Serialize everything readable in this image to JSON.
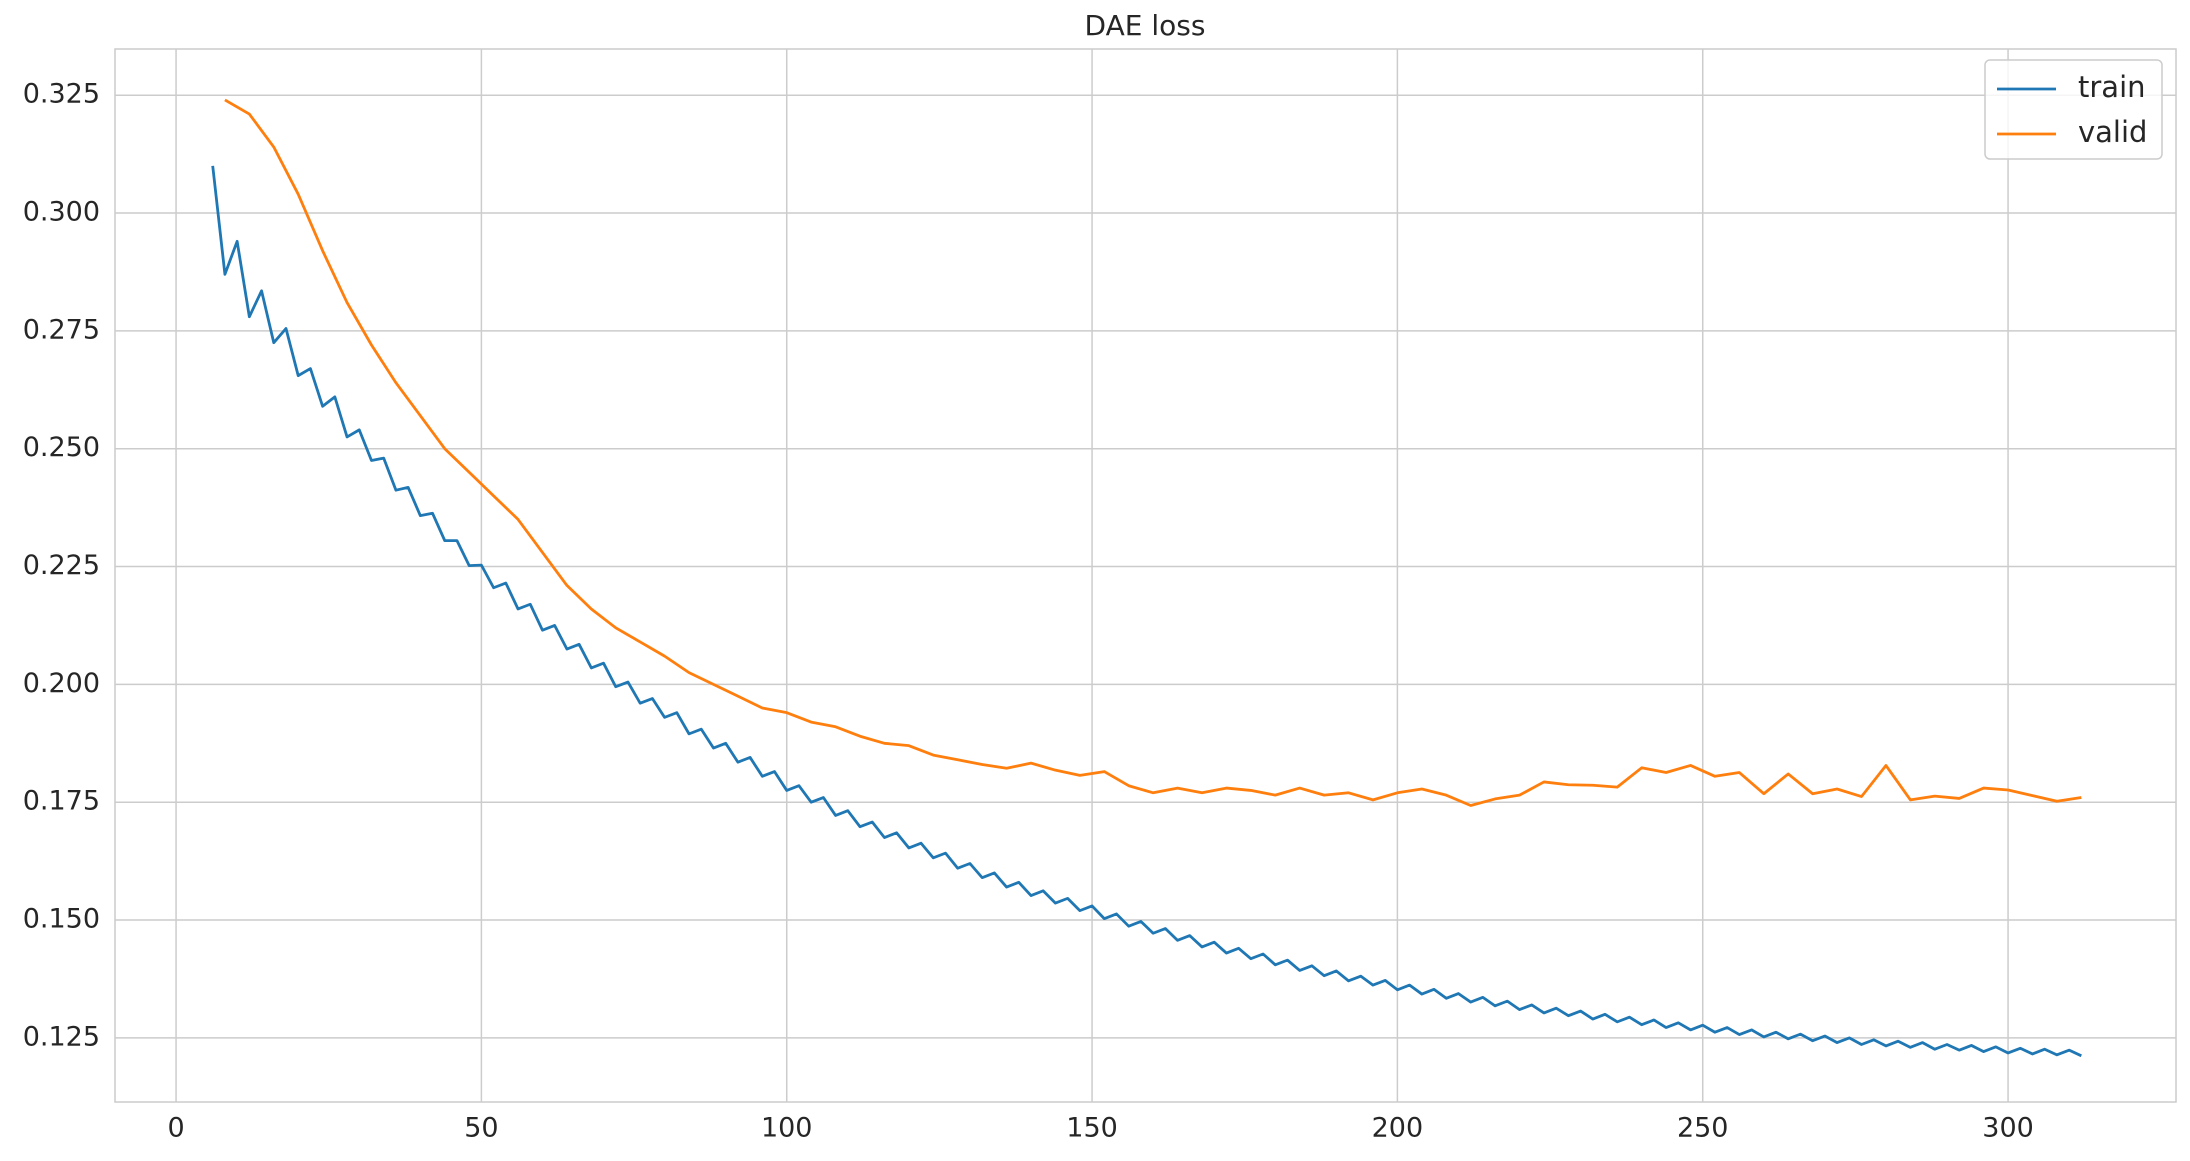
{
  "chart_data": {
    "type": "line",
    "title": "DAE loss",
    "xlim": [
      -10,
      327.5
    ],
    "ylim": [
      0.1114,
      0.3348
    ],
    "xticks": [
      0,
      50,
      100,
      150,
      200,
      250,
      300
    ],
    "yticks": [
      0.125,
      {
        "value": 0.15,
        "label": "0.150"
      },
      0.175,
      {
        "value": 0.2,
        "label": "0.200"
      },
      0.225,
      {
        "value": 0.25,
        "label": "0.250"
      },
      0.275,
      {
        "value": 0.3,
        "label": "0.300"
      },
      0.325
    ],
    "grid": true,
    "legend": "upper right",
    "series": [
      {
        "name": "train",
        "color": "#1f77b4",
        "x": [
          6,
          8,
          10,
          12,
          14,
          16,
          18,
          20,
          22,
          24,
          26,
          28,
          30,
          32,
          34,
          36,
          38,
          40,
          42,
          44,
          46,
          48,
          50,
          52,
          54,
          56,
          58,
          60,
          62,
          64,
          66,
          68,
          70,
          72,
          74,
          76,
          78,
          80,
          82,
          84,
          86,
          88,
          90,
          92,
          94,
          96,
          98,
          100,
          102,
          104,
          106,
          108,
          110,
          112,
          114,
          116,
          118,
          120,
          122,
          124,
          126,
          128,
          130,
          132,
          134,
          136,
          138,
          140,
          142,
          144,
          146,
          148,
          150,
          152,
          154,
          156,
          158,
          160,
          162,
          164,
          166,
          168,
          170,
          172,
          174,
          176,
          178,
          180,
          182,
          184,
          186,
          188,
          190,
          192,
          194,
          196,
          198,
          200,
          202,
          204,
          206,
          208,
          210,
          212,
          214,
          216,
          218,
          220,
          222,
          224,
          226,
          228,
          230,
          232,
          234,
          236,
          238,
          240,
          242,
          244,
          246,
          248,
          250,
          252,
          254,
          256,
          258,
          260,
          262,
          264,
          266,
          268,
          270,
          272,
          274,
          276,
          278,
          280,
          282,
          284,
          286,
          288,
          290,
          292,
          294,
          296,
          298,
          300,
          302,
          304,
          306,
          308,
          310,
          312
        ],
        "values": [
          0.31,
          0.287,
          0.294,
          0.278,
          0.2835,
          0.2725,
          0.2755,
          0.2655,
          0.267,
          0.259,
          0.261,
          0.2525,
          0.254,
          0.2475,
          0.248,
          0.2412,
          0.2418,
          0.2358,
          0.2363,
          0.2305,
          0.2305,
          0.2252,
          0.2253,
          0.2205,
          0.2215,
          0.216,
          0.217,
          0.2115,
          0.2125,
          0.2075,
          0.2085,
          0.2035,
          0.2045,
          0.1995,
          0.2005,
          0.196,
          0.197,
          0.193,
          0.194,
          0.1895,
          0.1905,
          0.1865,
          0.1875,
          0.1835,
          0.1845,
          0.1805,
          0.1815,
          0.1775,
          0.1785,
          0.175,
          0.176,
          0.1722,
          0.1732,
          0.1698,
          0.1708,
          0.1675,
          0.1685,
          0.1653,
          0.1663,
          0.1632,
          0.1642,
          0.161,
          0.162,
          0.159,
          0.16,
          0.157,
          0.158,
          0.1552,
          0.1562,
          0.1536,
          0.1546,
          0.152,
          0.153,
          0.1503,
          0.1513,
          0.1487,
          0.1497,
          0.1472,
          0.1482,
          0.1457,
          0.1467,
          0.1443,
          0.1453,
          0.143,
          0.144,
          0.1418,
          0.1428,
          0.1405,
          0.1415,
          0.1393,
          0.1403,
          0.1382,
          0.1392,
          0.1371,
          0.1381,
          0.1362,
          0.1372,
          0.1352,
          0.1362,
          0.1343,
          0.1353,
          0.1334,
          0.1344,
          0.1326,
          0.1336,
          0.1318,
          0.1328,
          0.131,
          0.132,
          0.1303,
          0.1313,
          0.1297,
          0.1307,
          0.129,
          0.13,
          0.1284,
          0.1294,
          0.1278,
          0.1288,
          0.1272,
          0.1282,
          0.1267,
          0.1277,
          0.1262,
          0.1272,
          0.1257,
          0.1267,
          0.1252,
          0.1262,
          0.1248,
          0.1258,
          0.1244,
          0.1254,
          0.124,
          0.125,
          0.1236,
          0.1246,
          0.1233,
          0.1243,
          0.123,
          0.124,
          0.1226,
          0.1236,
          0.1224,
          0.1234,
          0.1221,
          0.1231,
          0.1218,
          0.1228,
          0.1216,
          0.1226,
          0.1214,
          0.1224,
          0.1212
        ]
      },
      {
        "name": "valid",
        "color": "#ff7f0e",
        "x": [
          8,
          12,
          16,
          20,
          24,
          28,
          32,
          36,
          40,
          44,
          48,
          52,
          56,
          60,
          64,
          68,
          72,
          76,
          80,
          84,
          88,
          92,
          96,
          100,
          104,
          108,
          112,
          116,
          120,
          124,
          128,
          132,
          136,
          140,
          144,
          148,
          152,
          156,
          160,
          164,
          168,
          172,
          176,
          180,
          184,
          188,
          192,
          196,
          200,
          204,
          208,
          212,
          216,
          220,
          224,
          228,
          232,
          236,
          240,
          244,
          248,
          252,
          256,
          260,
          264,
          268,
          272,
          276,
          280,
          284,
          288,
          292,
          296,
          300,
          304,
          308,
          312
        ],
        "values": [
          0.324,
          0.321,
          0.314,
          0.304,
          0.292,
          0.281,
          0.272,
          0.264,
          0.257,
          0.25,
          0.245,
          0.24,
          0.235,
          0.228,
          0.221,
          0.216,
          0.212,
          0.209,
          0.206,
          0.2025,
          0.2,
          0.1975,
          0.195,
          0.194,
          0.192,
          0.191,
          0.189,
          0.1875,
          0.187,
          0.185,
          0.184,
          0.183,
          0.1822,
          0.1833,
          0.1818,
          0.1807,
          0.1815,
          0.1785,
          0.177,
          0.178,
          0.177,
          0.178,
          0.1775,
          0.1765,
          0.178,
          0.1765,
          0.177,
          0.1755,
          0.177,
          0.1778,
          0.1765,
          0.1743,
          0.1757,
          0.1765,
          0.1793,
          0.1787,
          0.1786,
          0.1782,
          0.1823,
          0.1813,
          0.1828,
          0.1805,
          0.1813,
          0.1768,
          0.181,
          0.1768,
          0.1778,
          0.1762,
          0.1828,
          0.1755,
          0.1763,
          0.1758,
          0.178,
          0.1776,
          0.1764,
          0.1752,
          0.176
        ]
      }
    ]
  }
}
